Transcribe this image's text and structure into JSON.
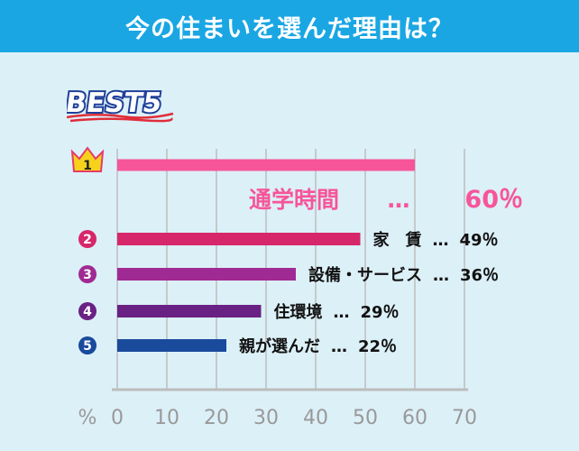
{
  "header": {
    "title": "今の住まいを選んだ理由は？"
  },
  "badge": {
    "label": "BEST5"
  },
  "colors": {
    "header_bg": "#1aa6e3",
    "background": "#dcf0f8",
    "grid": "#bdbdbd",
    "rank1": "#f7559a",
    "rank2": "#d6276a",
    "rank3": "#a02a93",
    "rank4": "#6a2184",
    "rank5": "#1a4a9c",
    "crown": "#f6d21c"
  },
  "chart_data": {
    "type": "bar",
    "orientation": "horizontal",
    "unit_label": "%",
    "xlim": [
      0,
      70
    ],
    "ticks": [
      "0",
      "10",
      "20",
      "30",
      "40",
      "50",
      "60",
      "70"
    ],
    "tick_values": [
      0,
      10,
      20,
      30,
      40,
      50,
      60,
      70
    ],
    "grid": true,
    "bars": [
      {
        "rank": "1",
        "category": "通学時間",
        "separator": "…",
        "value": 60,
        "value_label": "60％",
        "color": "#f7559a"
      },
      {
        "rank": "2",
        "category": "家　賃",
        "separator": "…",
        "value": 49,
        "value_label": "49％",
        "color": "#d6276a"
      },
      {
        "rank": "3",
        "category": "設備・サービス",
        "separator": "…",
        "value": 36,
        "value_label": "36％",
        "color": "#a02a93"
      },
      {
        "rank": "4",
        "category": "住環境",
        "separator": "…",
        "value": 29,
        "value_label": "29％",
        "color": "#6a2184"
      },
      {
        "rank": "5",
        "category": "親が選んだ",
        "separator": "…",
        "value": 22,
        "value_label": "22％",
        "color": "#1a4a9c"
      }
    ]
  }
}
